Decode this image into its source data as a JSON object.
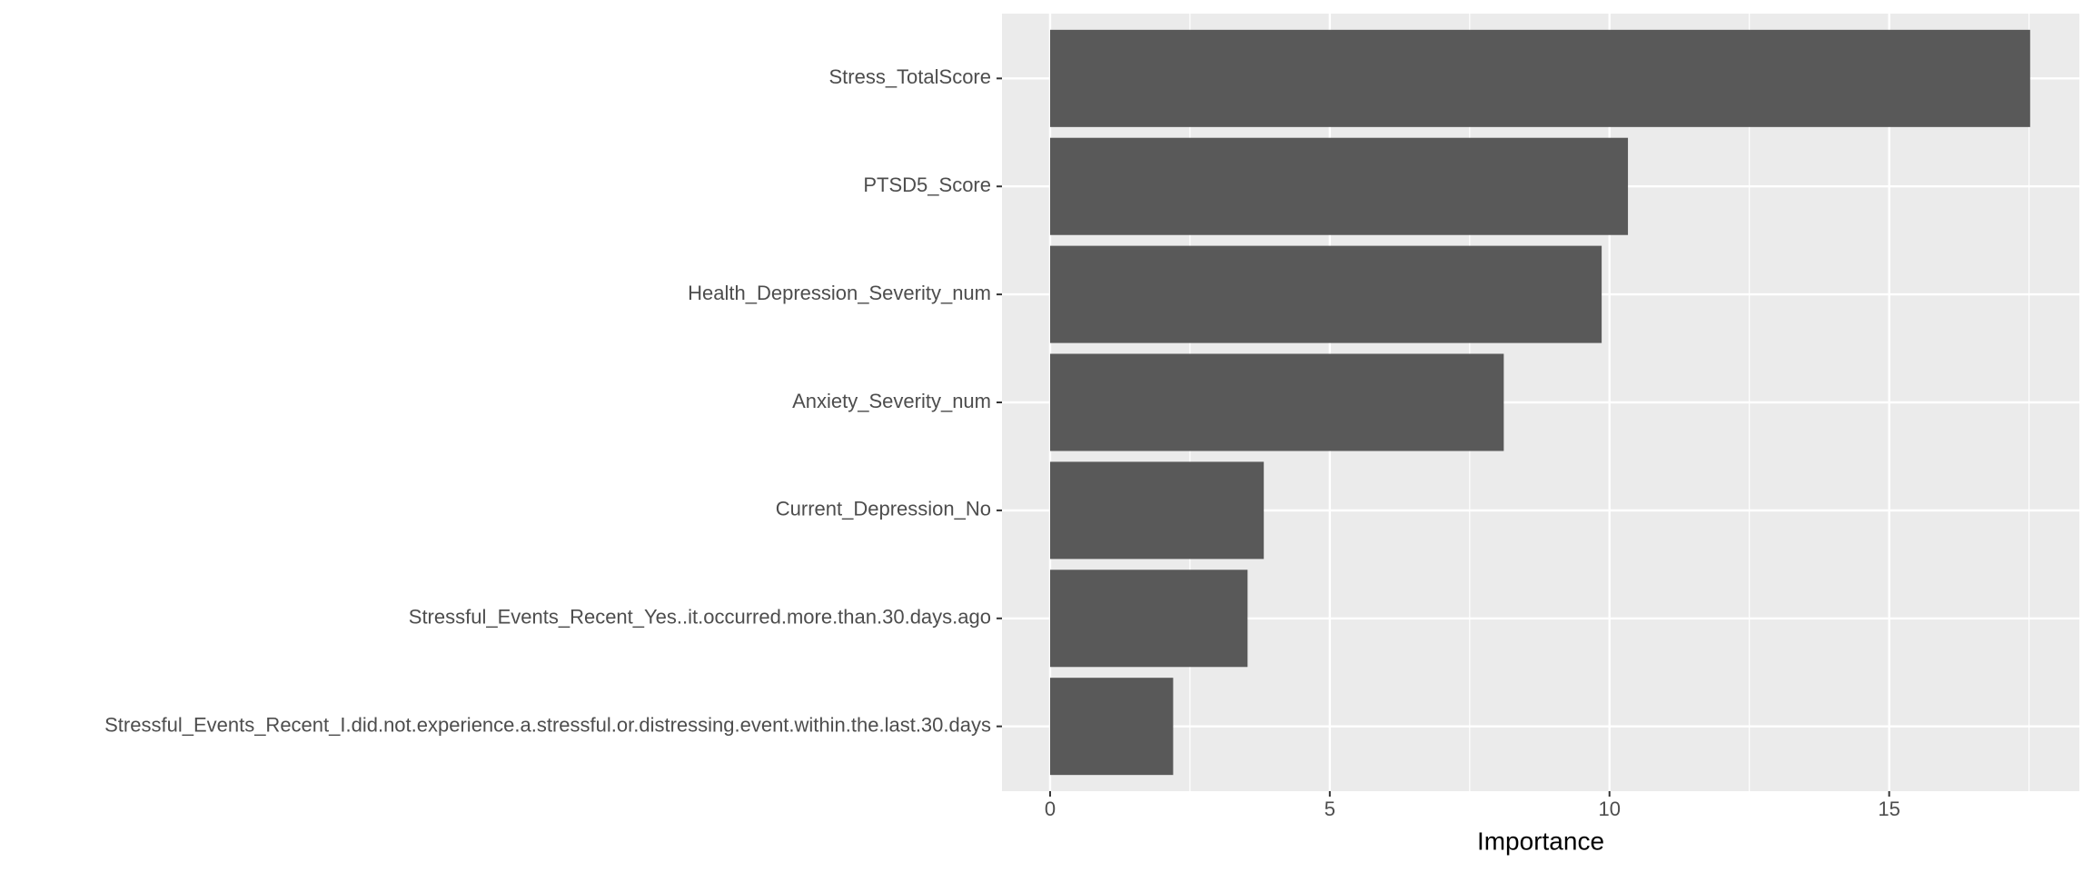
{
  "chart_data": {
    "type": "barh",
    "x_label": "Importance",
    "categories": [
      "Stress_TotalScore",
      "PTSD5_Score",
      "Health_Depression_Severity_num",
      "Anxiety_Severity_num",
      "Current_Depression_No",
      "Stressful_Events_Recent_Yes..it.occurred.more.than.30.days.ago",
      "Stressful_Events_Recent_I.did.not.experience.a.stressful.or.distressing.event.within.the.last.30.days"
    ],
    "values": [
      17.52,
      10.33,
      9.86,
      8.11,
      3.82,
      3.53,
      2.2
    ],
    "color": "#595959",
    "xlim": [
      -0.86,
      18.4
    ],
    "xticks": [
      0,
      5,
      10,
      15
    ],
    "minor_xticks": [
      2.5,
      7.5,
      12.5,
      17.5
    ],
    "grid": true,
    "panel_color": "#ebebeb"
  }
}
